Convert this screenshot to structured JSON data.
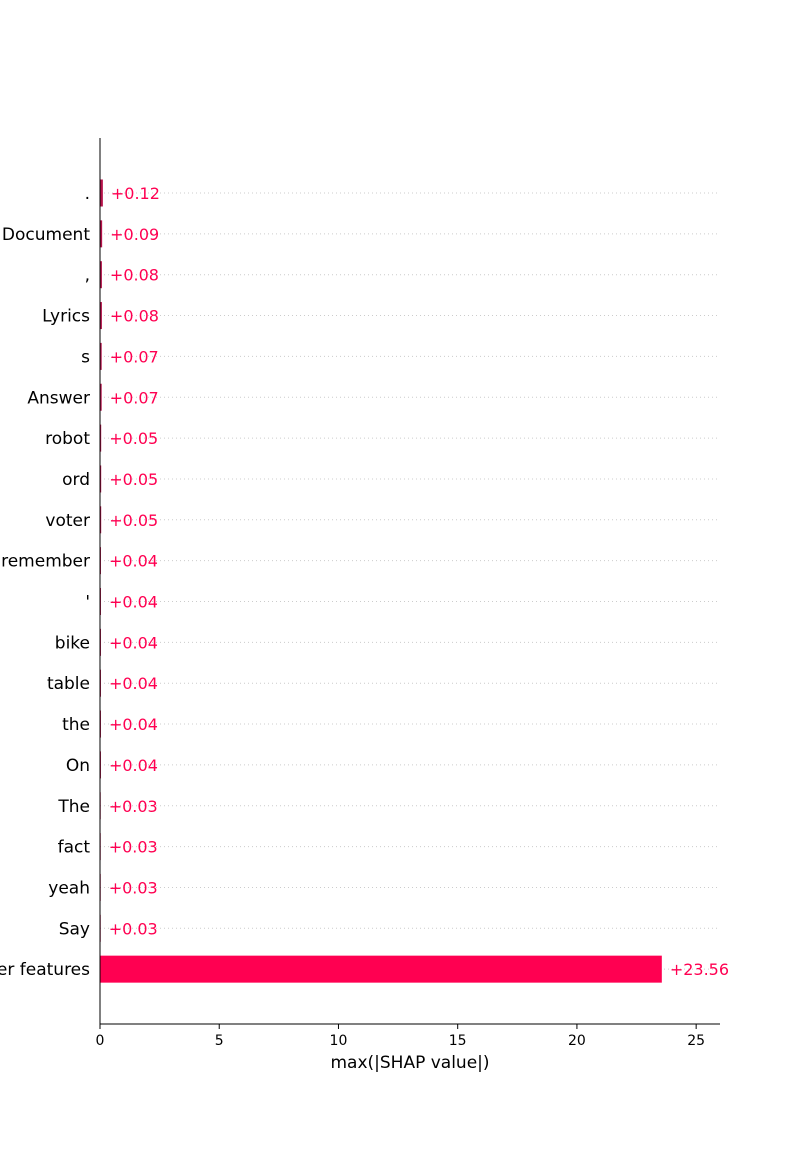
{
  "chart_data": {
    "type": "bar",
    "orientation": "horizontal",
    "categories": [
      ".",
      "Document",
      ",",
      "Lyrics",
      "s",
      "Answer",
      "robot",
      "ord",
      "voter",
      "remember",
      "'",
      "bike",
      "table",
      "the",
      "On",
      "The",
      "fact",
      "yeah",
      "Say",
      "Sum of other features"
    ],
    "values": [
      0.12,
      0.09,
      0.08,
      0.08,
      0.07,
      0.07,
      0.05,
      0.05,
      0.05,
      0.04,
      0.04,
      0.04,
      0.04,
      0.04,
      0.04,
      0.03,
      0.03,
      0.03,
      0.03,
      23.56
    ],
    "value_labels": [
      "+0.12",
      "+0.09",
      "+0.08",
      "+0.08",
      "+0.07",
      "+0.07",
      "+0.05",
      "+0.05",
      "+0.05",
      "+0.04",
      "+0.04",
      "+0.04",
      "+0.04",
      "+0.04",
      "+0.04",
      "+0.03",
      "+0.03",
      "+0.03",
      "+0.03",
      "+23.56"
    ],
    "xlabel": "max(|SHAP value|)",
    "ylabel": "",
    "xlim": [
      0,
      26
    ],
    "xticks": [
      0,
      5,
      10,
      15,
      20,
      25
    ],
    "grid": "horizontal dotted",
    "legend": "none",
    "bar_color": "#ff0051",
    "label_color": "#ff0051"
  }
}
